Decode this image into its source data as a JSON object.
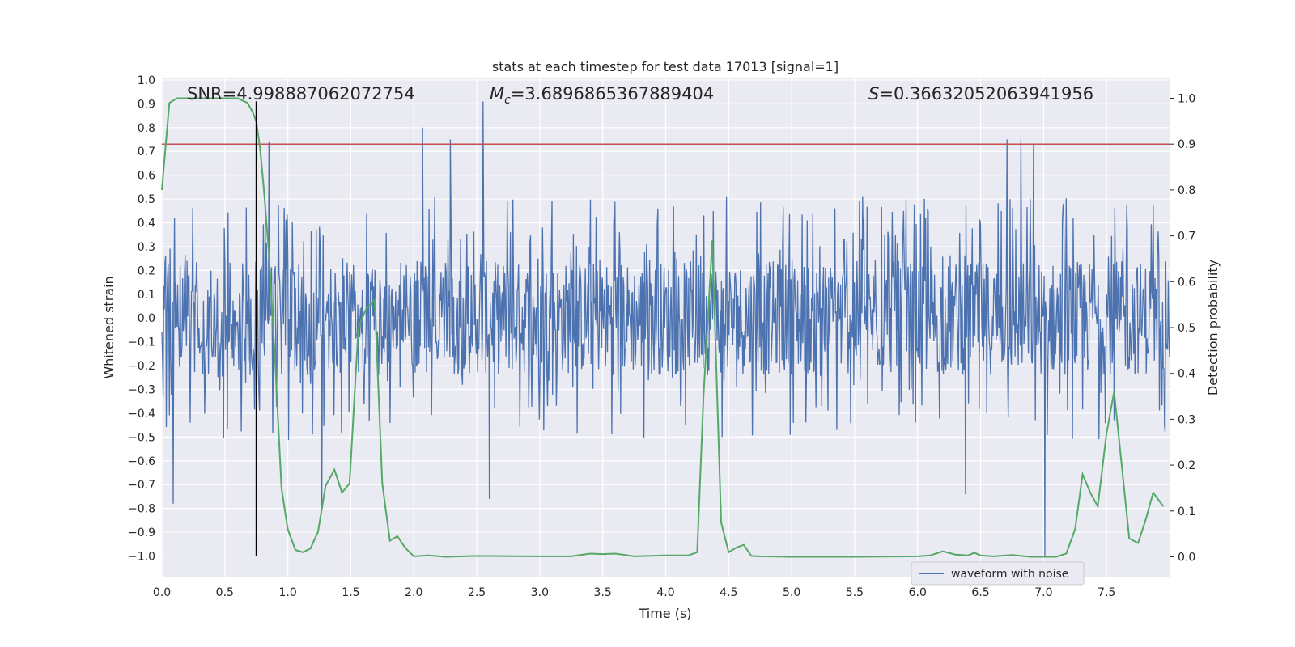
{
  "chart_data": {
    "type": "line",
    "title": "stats at each timestep for test data 17013 [signal=1]",
    "xlabel": "Time (s)",
    "ylabel": "Whitened strain",
    "y2label": "Detection probability",
    "xlim": [
      0.0,
      8.0
    ],
    "ylim": [
      -1.09,
      1.01
    ],
    "y2lim": [
      -0.045,
      1.045
    ],
    "xticks": [
      0.0,
      0.5,
      1.0,
      1.5,
      2.0,
      2.5,
      3.0,
      3.5,
      4.0,
      4.5,
      5.0,
      5.5,
      6.0,
      6.5,
      7.0,
      7.5
    ],
    "yticks": [
      -1.0,
      -0.9,
      -0.8,
      -0.7,
      -0.6,
      -0.5,
      -0.4,
      -0.3,
      -0.2,
      -0.1,
      0.0,
      0.1,
      0.2,
      0.3,
      0.4,
      0.5,
      0.6,
      0.7,
      0.8,
      0.9,
      1.0
    ],
    "y2ticks": [
      0.0,
      0.1,
      0.2,
      0.3,
      0.4,
      0.5,
      0.6,
      0.7,
      0.8,
      0.9,
      1.0
    ],
    "grid": true,
    "legend": {
      "location": "lower-right",
      "entries": [
        "waveform with noise"
      ]
    },
    "annotations": {
      "snr_prefix": "SNR=",
      "snr_value": "4.998887062072754",
      "mc_symbol": "M",
      "mc_subscript": "c",
      "mc_value": "=3.6896865367889404",
      "s_symbol": "S",
      "s_value": "=0.36632052063941956"
    },
    "colors": {
      "waveform": "#4c72b0",
      "probability": "#55a868",
      "threshold": "#c44e52",
      "marker": "#000000",
      "background": "#eaeaf2",
      "grid": "#ffffff"
    },
    "series": [
      {
        "name": "waveform with noise",
        "axis": "left",
        "kind": "noise",
        "n_points": 1600,
        "core_amplitude": 0.24,
        "spike_amplitude": 0.5,
        "spikes": [
          {
            "x": 0.85,
            "y": 0.74
          },
          {
            "x": 2.07,
            "y": 0.8
          },
          {
            "x": 2.29,
            "y": 0.75
          },
          {
            "x": 2.55,
            "y": 0.91
          },
          {
            "x": 6.71,
            "y": 0.75
          },
          {
            "x": 6.82,
            "y": 0.75
          },
          {
            "x": 6.92,
            "y": 0.73
          },
          {
            "x": 0.09,
            "y": -0.78
          },
          {
            "x": 1.27,
            "y": -0.79
          },
          {
            "x": 2.6,
            "y": -0.76
          },
          {
            "x": 6.38,
            "y": -0.74
          },
          {
            "x": 7.01,
            "y": -1.0
          }
        ]
      },
      {
        "name": "detection probability",
        "axis": "right",
        "x": [
          0.0,
          0.06,
          0.12,
          0.2,
          0.3,
          0.4,
          0.5,
          0.6,
          0.68,
          0.72,
          0.75,
          0.78,
          0.81,
          0.85,
          0.9,
          0.95,
          1.0,
          1.06,
          1.12,
          1.18,
          1.24,
          1.3,
          1.37,
          1.43,
          1.49,
          1.56,
          1.62,
          1.69,
          1.75,
          1.81,
          1.87,
          1.93,
          2.0,
          2.12,
          2.25,
          2.5,
          3.0,
          3.25,
          3.4,
          3.5,
          3.6,
          3.75,
          4.0,
          4.18,
          4.25,
          4.3,
          4.37,
          4.44,
          4.5,
          4.56,
          4.62,
          4.68,
          4.75,
          5.0,
          5.5,
          6.0,
          6.1,
          6.2,
          6.3,
          6.4,
          6.45,
          6.5,
          6.6,
          6.75,
          6.9,
          7.1,
          7.18,
          7.25,
          7.31,
          7.37,
          7.43,
          7.5,
          7.56,
          7.62,
          7.68,
          7.75,
          7.81,
          7.87,
          7.95
        ],
        "values": [
          0.8,
          0.99,
          1.0,
          1.0,
          1.0,
          1.0,
          1.0,
          1.0,
          0.99,
          0.97,
          0.95,
          0.89,
          0.8,
          0.66,
          0.42,
          0.15,
          0.06,
          0.015,
          0.01,
          0.018,
          0.055,
          0.155,
          0.19,
          0.14,
          0.16,
          0.5,
          0.54,
          0.56,
          0.16,
          0.035,
          0.045,
          0.02,
          0.001,
          0.003,
          0.0,
          0.002,
          0.001,
          0.001,
          0.007,
          0.006,
          0.007,
          0.001,
          0.003,
          0.003,
          0.01,
          0.35,
          0.69,
          0.075,
          0.01,
          0.02,
          0.026,
          0.002,
          0.001,
          0.0,
          0.0,
          0.001,
          0.003,
          0.012,
          0.005,
          0.003,
          0.009,
          0.003,
          0.001,
          0.004,
          0.0,
          0.0,
          0.007,
          0.06,
          0.18,
          0.14,
          0.11,
          0.27,
          0.36,
          0.2,
          0.04,
          0.03,
          0.08,
          0.14,
          0.11
        ]
      },
      {
        "name": "threshold",
        "axis": "right",
        "kind": "hline",
        "y": 0.9
      },
      {
        "name": "event marker",
        "axis": "left",
        "kind": "vline",
        "x": 0.75,
        "y_range": [
          -1.0,
          0.91
        ]
      }
    ]
  }
}
